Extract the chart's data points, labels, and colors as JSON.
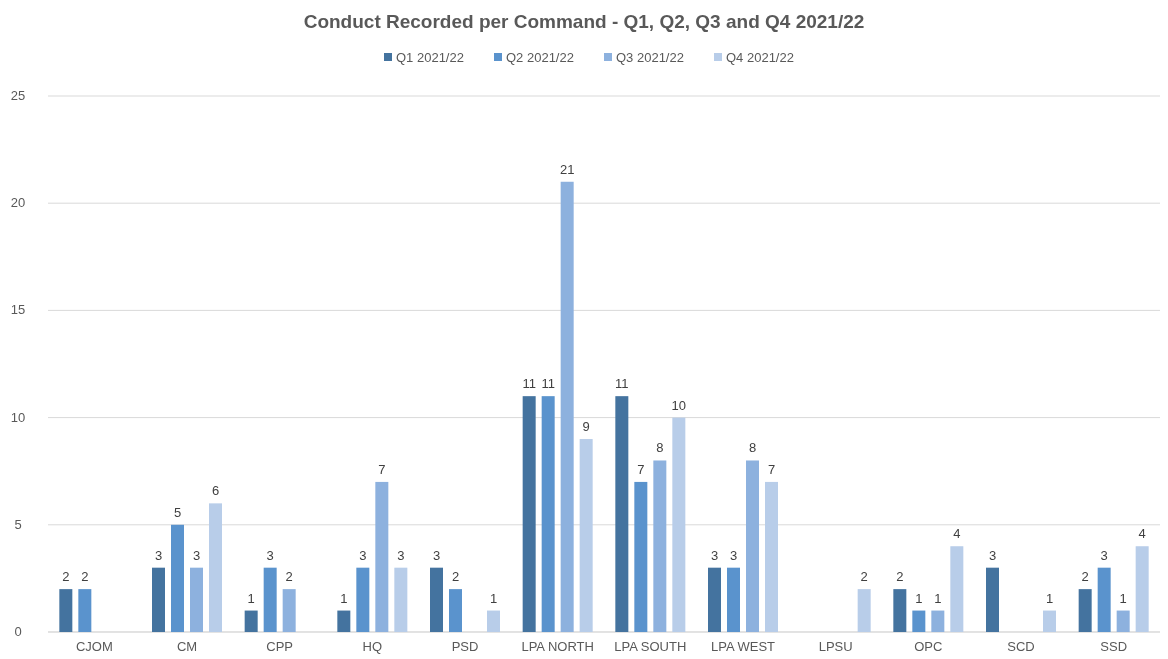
{
  "chart_data": {
    "type": "bar",
    "title": "Conduct Recorded per Command - Q1, Q2, Q3 and Q4 2021/22",
    "categories": [
      "CJOM",
      "CM",
      "CPP",
      "HQ",
      "PSD",
      "LPA NORTH",
      "LPA SOUTH",
      "LPA WEST",
      "LPSU",
      "OPC",
      "SCD",
      "SSD"
    ],
    "series": [
      {
        "name": "Q1 2021/22",
        "color": "#44739f",
        "values": [
          2,
          3,
          1,
          1,
          3,
          11,
          11,
          3,
          null,
          2,
          3,
          2
        ]
      },
      {
        "name": "Q2 2021/22",
        "color": "#5a93cd",
        "values": [
          2,
          5,
          3,
          3,
          2,
          11,
          7,
          3,
          null,
          1,
          null,
          3
        ]
      },
      {
        "name": "Q3 2021/22",
        "color": "#8db1de",
        "values": [
          null,
          3,
          2,
          7,
          null,
          21,
          8,
          8,
          null,
          1,
          null,
          1
        ]
      },
      {
        "name": "Q4 2021/22",
        "color": "#b8cde9",
        "values": [
          null,
          6,
          null,
          3,
          1,
          9,
          10,
          7,
          2,
          4,
          1,
          4
        ]
      }
    ],
    "ylim": [
      0,
      25
    ],
    "yticks": [
      0,
      5,
      10,
      15,
      20,
      25
    ],
    "grid": "y",
    "legend": "top",
    "data_labels": true
  }
}
